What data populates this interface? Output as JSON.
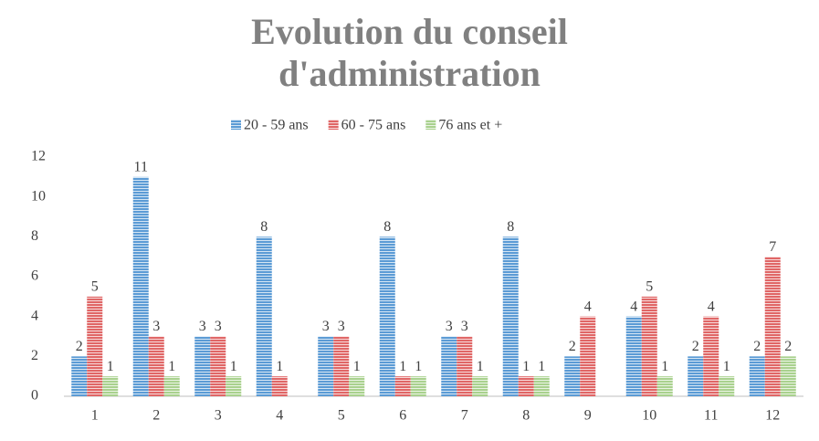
{
  "chart_data": {
    "type": "bar",
    "title": "Evolution du conseil d'administration",
    "categories": [
      "1",
      "2",
      "3",
      "4",
      "5",
      "6",
      "7",
      "8",
      "9",
      "10",
      "11",
      "12"
    ],
    "series": [
      {
        "name": "20 - 59 ans",
        "color": "#5b9bd5",
        "values": [
          2,
          11,
          3,
          8,
          3,
          8,
          3,
          8,
          2,
          4,
          2,
          2
        ]
      },
      {
        "name": "60 - 75 ans",
        "color": "#e06666",
        "values": [
          5,
          3,
          3,
          1,
          3,
          1,
          3,
          1,
          4,
          5,
          4,
          7
        ]
      },
      {
        "name": "76 ans et +",
        "color": "#a9d18e",
        "values": [
          1,
          1,
          1,
          null,
          1,
          1,
          1,
          1,
          null,
          1,
          1,
          2
        ]
      }
    ],
    "ylim": [
      0,
      12
    ],
    "yticks": [
      0,
      2,
      4,
      6,
      8,
      10,
      12
    ],
    "grid": false,
    "legend": "top"
  }
}
